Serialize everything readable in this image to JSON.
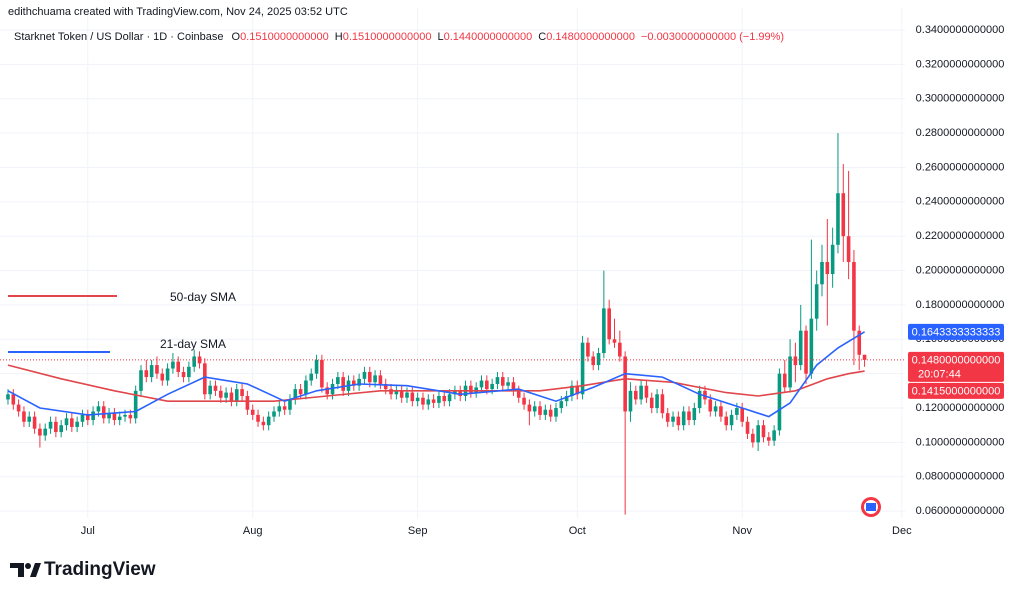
{
  "chart_data": {
    "type": "candlestick",
    "credit": "edithchuama created with TradingView.com, Nov 24, 2025 03:52 UTC",
    "title": "Starknet Token / US Dollar · 1D · Coinbase",
    "ohlc_legend": [
      {
        "key": "O",
        "value": "0.1510000000000"
      },
      {
        "key": "H",
        "value": "0.1510000000000"
      },
      {
        "key": "L",
        "value": "0.1440000000000"
      },
      {
        "key": "C",
        "value": "0.1480000000000"
      }
    ],
    "change": "−0.0030000000000 (−1.99%)",
    "up_color": "#089981",
    "down_color": "#f23645",
    "x": [
      0,
      1,
      2,
      3,
      4,
      5,
      6,
      7,
      8,
      9,
      10,
      11,
      12,
      13,
      14,
      15,
      16,
      17,
      18,
      19,
      20,
      21,
      22,
      23,
      24,
      25,
      26,
      27,
      28,
      29,
      30,
      31,
      32,
      33,
      34,
      35,
      36,
      37,
      38,
      39,
      40,
      41,
      42,
      43,
      44,
      45,
      46,
      47,
      48,
      49,
      50,
      51,
      52,
      53,
      54,
      55,
      56,
      57,
      58,
      59,
      60,
      61,
      62,
      63,
      64,
      65,
      66,
      67,
      68,
      69,
      70,
      71,
      72,
      73,
      74,
      75,
      76,
      77,
      78,
      79,
      80,
      81,
      82,
      83,
      84,
      85,
      86,
      87,
      88,
      89,
      90,
      91,
      92,
      93,
      94,
      95,
      96,
      97,
      98,
      99,
      100,
      101,
      102,
      103,
      104,
      105,
      106,
      107,
      108,
      109,
      110,
      111,
      112,
      113,
      114,
      115,
      116,
      117,
      118,
      119,
      120,
      121,
      122,
      123,
      124,
      125,
      126,
      127,
      128,
      129,
      130,
      131,
      132,
      133,
      134,
      135,
      136,
      137,
      138,
      139,
      140,
      141,
      142,
      143,
      144,
      145,
      146,
      147,
      148,
      149,
      150,
      151,
      152,
      153,
      154,
      155,
      156,
      157,
      158,
      159,
      160,
      161
    ],
    "open": [
      0.125,
      0.128,
      0.122,
      0.118,
      0.112,
      0.115,
      0.108,
      0.104,
      0.108,
      0.112,
      0.106,
      0.11,
      0.114,
      0.109,
      0.112,
      0.116,
      0.113,
      0.118,
      0.121,
      0.114,
      0.117,
      0.113,
      0.115,
      0.116,
      0.114,
      0.13,
      0.142,
      0.138,
      0.145,
      0.14,
      0.136,
      0.143,
      0.147,
      0.141,
      0.138,
      0.144,
      0.15,
      0.146,
      0.128,
      0.133,
      0.13,
      0.126,
      0.129,
      0.124,
      0.131,
      0.127,
      0.119,
      0.116,
      0.112,
      0.11,
      0.115,
      0.118,
      0.121,
      0.119,
      0.125,
      0.131,
      0.128,
      0.136,
      0.14,
      0.148,
      0.132,
      0.128,
      0.134,
      0.138,
      0.13,
      0.136,
      0.133,
      0.137,
      0.141,
      0.135,
      0.139,
      0.134,
      0.131,
      0.128,
      0.13,
      0.126,
      0.129,
      0.124,
      0.126,
      0.122,
      0.125,
      0.123,
      0.127,
      0.124,
      0.128,
      0.13,
      0.127,
      0.133,
      0.129,
      0.132,
      0.136,
      0.131,
      0.134,
      0.138,
      0.133,
      0.135,
      0.13,
      0.126,
      0.122,
      0.118,
      0.121,
      0.116,
      0.119,
      0.115,
      0.12,
      0.124,
      0.127,
      0.133,
      0.128,
      0.158,
      0.15,
      0.145,
      0.152,
      0.178,
      0.16,
      0.158,
      0.15,
      0.118,
      0.13,
      0.125,
      0.133,
      0.126,
      0.12,
      0.128,
      0.117,
      0.112,
      0.115,
      0.11,
      0.118,
      0.113,
      0.12,
      0.13,
      0.125,
      0.118,
      0.121,
      0.115,
      0.11,
      0.116,
      0.12,
      0.112,
      0.105,
      0.1,
      0.11,
      0.103,
      0.101,
      0.107,
      0.14,
      0.132,
      0.15,
      0.145,
      0.165,
      0.14,
      0.172,
      0.192,
      0.205,
      0.198,
      0.215,
      0.245,
      0.22,
      0.205,
      0.165,
      0.151
    ],
    "high": [
      0.131,
      0.131,
      0.125,
      0.121,
      0.118,
      0.118,
      0.111,
      0.111,
      0.115,
      0.115,
      0.113,
      0.117,
      0.117,
      0.115,
      0.119,
      0.119,
      0.121,
      0.124,
      0.124,
      0.12,
      0.12,
      0.118,
      0.119,
      0.119,
      0.133,
      0.145,
      0.148,
      0.148,
      0.15,
      0.143,
      0.146,
      0.152,
      0.15,
      0.144,
      0.147,
      0.154,
      0.153,
      0.149,
      0.136,
      0.136,
      0.133,
      0.132,
      0.132,
      0.134,
      0.134,
      0.13,
      0.122,
      0.119,
      0.115,
      0.118,
      0.121,
      0.124,
      0.124,
      0.128,
      0.134,
      0.134,
      0.139,
      0.143,
      0.151,
      0.151,
      0.135,
      0.137,
      0.141,
      0.141,
      0.139,
      0.139,
      0.14,
      0.144,
      0.144,
      0.142,
      0.142,
      0.137,
      0.134,
      0.133,
      0.133,
      0.132,
      0.132,
      0.129,
      0.129,
      0.128,
      0.128,
      0.13,
      0.13,
      0.131,
      0.133,
      0.133,
      0.136,
      0.136,
      0.135,
      0.139,
      0.139,
      0.137,
      0.141,
      0.141,
      0.138,
      0.138,
      0.133,
      0.129,
      0.125,
      0.124,
      0.124,
      0.122,
      0.122,
      0.123,
      0.127,
      0.13,
      0.136,
      0.136,
      0.162,
      0.161,
      0.153,
      0.155,
      0.2,
      0.183,
      0.172,
      0.165,
      0.153,
      0.135,
      0.133,
      0.136,
      0.136,
      0.129,
      0.131,
      0.131,
      0.12,
      0.118,
      0.118,
      0.121,
      0.121,
      0.123,
      0.133,
      0.133,
      0.128,
      0.124,
      0.124,
      0.118,
      0.119,
      0.123,
      0.123,
      0.115,
      0.108,
      0.113,
      0.113,
      0.106,
      0.11,
      0.143,
      0.148,
      0.16,
      0.158,
      0.18,
      0.168,
      0.218,
      0.2,
      0.215,
      0.23,
      0.225,
      0.28,
      0.262,
      0.258,
      0.212,
      0.168,
      0.151
    ],
    "low": [
      0.122,
      0.119,
      0.115,
      0.109,
      0.109,
      0.105,
      0.097,
      0.101,
      0.105,
      0.103,
      0.103,
      0.107,
      0.106,
      0.106,
      0.109,
      0.11,
      0.11,
      0.115,
      0.111,
      0.111,
      0.11,
      0.11,
      0.112,
      0.111,
      0.111,
      0.127,
      0.135,
      0.135,
      0.137,
      0.133,
      0.133,
      0.14,
      0.138,
      0.135,
      0.135,
      0.141,
      0.143,
      0.125,
      0.125,
      0.127,
      0.123,
      0.123,
      0.121,
      0.121,
      0.124,
      0.116,
      0.113,
      0.109,
      0.107,
      0.107,
      0.112,
      0.115,
      0.116,
      0.116,
      0.122,
      0.125,
      0.125,
      0.133,
      0.137,
      0.129,
      0.125,
      0.125,
      0.131,
      0.127,
      0.127,
      0.13,
      0.13,
      0.134,
      0.132,
      0.132,
      0.131,
      0.128,
      0.125,
      0.125,
      0.123,
      0.123,
      0.121,
      0.121,
      0.119,
      0.119,
      0.12,
      0.12,
      0.121,
      0.121,
      0.125,
      0.124,
      0.124,
      0.126,
      0.126,
      0.129,
      0.128,
      0.128,
      0.131,
      0.13,
      0.13,
      0.127,
      0.123,
      0.119,
      0.11,
      0.115,
      0.113,
      0.113,
      0.112,
      0.112,
      0.117,
      0.121,
      0.124,
      0.125,
      0.125,
      0.147,
      0.142,
      0.142,
      0.149,
      0.157,
      0.155,
      0.147,
      0.058,
      0.112,
      0.122,
      0.122,
      0.123,
      0.117,
      0.117,
      0.114,
      0.109,
      0.109,
      0.107,
      0.107,
      0.11,
      0.11,
      0.117,
      0.122,
      0.115,
      0.115,
      0.112,
      0.107,
      0.107,
      0.113,
      0.109,
      0.102,
      0.097,
      0.095,
      0.1,
      0.098,
      0.098,
      0.104,
      0.129,
      0.129,
      0.135,
      0.142,
      0.134,
      0.137,
      0.165,
      0.185,
      0.168,
      0.19,
      0.21,
      0.205,
      0.195,
      0.145,
      0.142,
      0.144
    ],
    "close": [
      0.128,
      0.122,
      0.118,
      0.112,
      0.115,
      0.108,
      0.104,
      0.108,
      0.112,
      0.106,
      0.11,
      0.114,
      0.109,
      0.112,
      0.116,
      0.113,
      0.118,
      0.121,
      0.114,
      0.117,
      0.113,
      0.115,
      0.116,
      0.114,
      0.13,
      0.142,
      0.138,
      0.145,
      0.14,
      0.136,
      0.143,
      0.147,
      0.141,
      0.138,
      0.144,
      0.15,
      0.146,
      0.128,
      0.133,
      0.13,
      0.126,
      0.129,
      0.124,
      0.131,
      0.127,
      0.119,
      0.116,
      0.112,
      0.11,
      0.115,
      0.118,
      0.121,
      0.119,
      0.125,
      0.131,
      0.128,
      0.136,
      0.14,
      0.148,
      0.132,
      0.128,
      0.134,
      0.138,
      0.13,
      0.136,
      0.133,
      0.137,
      0.141,
      0.135,
      0.139,
      0.134,
      0.131,
      0.128,
      0.13,
      0.126,
      0.129,
      0.124,
      0.126,
      0.122,
      0.125,
      0.123,
      0.127,
      0.124,
      0.128,
      0.13,
      0.127,
      0.133,
      0.129,
      0.132,
      0.136,
      0.131,
      0.134,
      0.138,
      0.133,
      0.135,
      0.13,
      0.126,
      0.122,
      0.118,
      0.121,
      0.116,
      0.119,
      0.115,
      0.12,
      0.124,
      0.127,
      0.133,
      0.128,
      0.158,
      0.15,
      0.145,
      0.152,
      0.178,
      0.16,
      0.158,
      0.15,
      0.118,
      0.13,
      0.125,
      0.133,
      0.126,
      0.12,
      0.128,
      0.117,
      0.112,
      0.115,
      0.11,
      0.118,
      0.113,
      0.12,
      0.13,
      0.125,
      0.118,
      0.121,
      0.115,
      0.11,
      0.116,
      0.12,
      0.112,
      0.105,
      0.1,
      0.11,
      0.103,
      0.101,
      0.107,
      0.14,
      0.132,
      0.15,
      0.145,
      0.165,
      0.14,
      0.172,
      0.192,
      0.205,
      0.198,
      0.215,
      0.245,
      0.22,
      0.205,
      0.165,
      0.151,
      0.148
    ],
    "overlays": [
      {
        "name": "50-day SMA",
        "color": "#e0464b",
        "x": [
          0,
          10,
          20,
          30,
          40,
          50,
          60,
          70,
          80,
          90,
          100,
          108,
          116,
          125,
          135,
          141,
          148,
          154,
          158,
          161
        ],
        "values": [
          0.145,
          0.137,
          0.13,
          0.124,
          0.124,
          0.124,
          0.127,
          0.13,
          0.13,
          0.13,
          0.13,
          0.133,
          0.137,
          0.135,
          0.129,
          0.127,
          0.13,
          0.137,
          0.14,
          0.1415
        ]
      },
      {
        "name": "21-day SMA",
        "color": "#2962ff",
        "x": [
          0,
          6,
          15,
          24,
          30,
          37,
          45,
          52,
          58,
          66,
          75,
          85,
          96,
          103,
          110,
          116,
          123,
          130,
          138,
          143,
          147,
          152,
          156,
          161
        ],
        "values": [
          0.13,
          0.12,
          0.116,
          0.118,
          0.128,
          0.138,
          0.134,
          0.124,
          0.13,
          0.134,
          0.133,
          0.128,
          0.131,
          0.124,
          0.132,
          0.14,
          0.138,
          0.128,
          0.12,
          0.115,
          0.123,
          0.145,
          0.155,
          0.1643333333333
        ]
      }
    ],
    "price_labels": [
      {
        "value": 0.1643333333333,
        "label": "0.1643333333333",
        "color": "#2962ff"
      },
      {
        "value": 0.148,
        "label": "0.1480000000000",
        "color": "#f23645"
      },
      {
        "value": 0.1415,
        "label": "0.1415000000000",
        "color": "#f23645"
      }
    ],
    "countdown": "20:07:44",
    "xlim": [
      -1.5,
      168.6
    ],
    "xticks": [
      {
        "value": 15,
        "label": "Jul"
      },
      {
        "value": 46,
        "label": "Aug"
      },
      {
        "value": 77,
        "label": "Sep"
      },
      {
        "value": 107,
        "label": "Oct"
      },
      {
        "value": 138,
        "label": "Nov"
      },
      {
        "value": 168,
        "label": "Dec"
      }
    ],
    "ylim": [
      0.056,
      0.3528
    ],
    "yticks": [
      {
        "value": 0.06,
        "label": "0.0600000000000"
      },
      {
        "value": 0.08,
        "label": "0.0800000000000"
      },
      {
        "value": 0.1,
        "label": "0.1000000000000"
      },
      {
        "value": 0.12,
        "label": "0.1200000000000"
      },
      {
        "value": 0.14,
        "label": "0.1400000000000"
      },
      {
        "value": 0.16,
        "label": "0.1600000000000"
      },
      {
        "value": 0.18,
        "label": "0.1800000000000"
      },
      {
        "value": 0.2,
        "label": "0.2000000000000"
      },
      {
        "value": 0.22,
        "label": "0.2200000000000"
      },
      {
        "value": 0.24,
        "label": "0.2400000000000"
      },
      {
        "value": 0.26,
        "label": "0.2600000000000"
      },
      {
        "value": 0.28,
        "label": "0.2800000000000"
      },
      {
        "value": 0.3,
        "label": "0.3000000000000"
      },
      {
        "value": 0.32,
        "label": "0.3200000000000"
      },
      {
        "value": 0.34,
        "label": "0.3400000000000"
      }
    ],
    "grid": true,
    "brand": "TradingView"
  }
}
